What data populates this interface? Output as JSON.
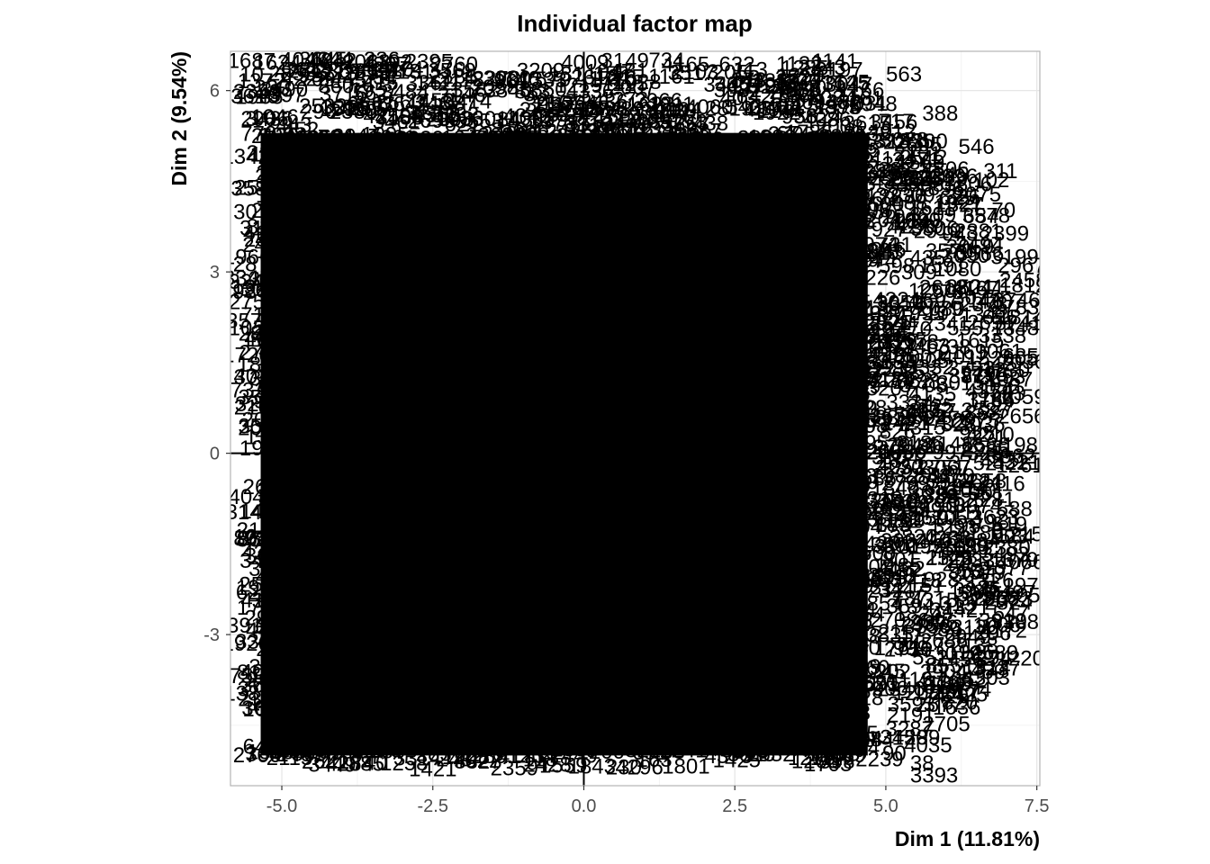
{
  "chart_data": {
    "type": "scatter",
    "title": "Individual factor map",
    "xlabel": "Dim 1 (11.81%)",
    "ylabel": "Dim 2 (9.54%)",
    "xlim": [
      -5.85,
      7.55
    ],
    "ylim": [
      -5.5,
      6.65
    ],
    "xticks": [
      -5.0,
      -2.5,
      0.0,
      2.5,
      5.0,
      7.5
    ],
    "xtick_labels": [
      "-5.0",
      "-2.5",
      "0.0",
      "2.5",
      "5.0",
      "7.5"
    ],
    "yticks": [
      -3,
      0,
      3,
      6
    ],
    "ytick_labels": [
      "-3",
      "0",
      "3",
      "6"
    ],
    "grid": true,
    "reference_lines": {
      "x": 0,
      "y": 0
    },
    "point_style": "text-labels",
    "visible_labels": [
      {
        "text": "10",
        "x": -5.5,
        "y": 6.15
      },
      {
        "text": "2063",
        "x": -3.6,
        "y": 6.35
      },
      {
        "text": "563",
        "x": 5.3,
        "y": 6.15
      },
      {
        "text": "388",
        "x": 5.9,
        "y": 5.5
      },
      {
        "text": "546",
        "x": 6.5,
        "y": 4.95
      },
      {
        "text": "311",
        "x": 6.9,
        "y": 4.55
      },
      {
        "text": "102",
        "x": 6.75,
        "y": 4.4
      },
      {
        "text": "70",
        "x": 6.95,
        "y": 3.9
      },
      {
        "text": "2705",
        "x": 6.0,
        "y": -4.6
      },
      {
        "text": "4035",
        "x": 5.7,
        "y": -4.95
      },
      {
        "text": "38",
        "x": 5.6,
        "y": -5.25
      },
      {
        "text": "3393",
        "x": 5.8,
        "y": -5.45
      }
    ]
  }
}
